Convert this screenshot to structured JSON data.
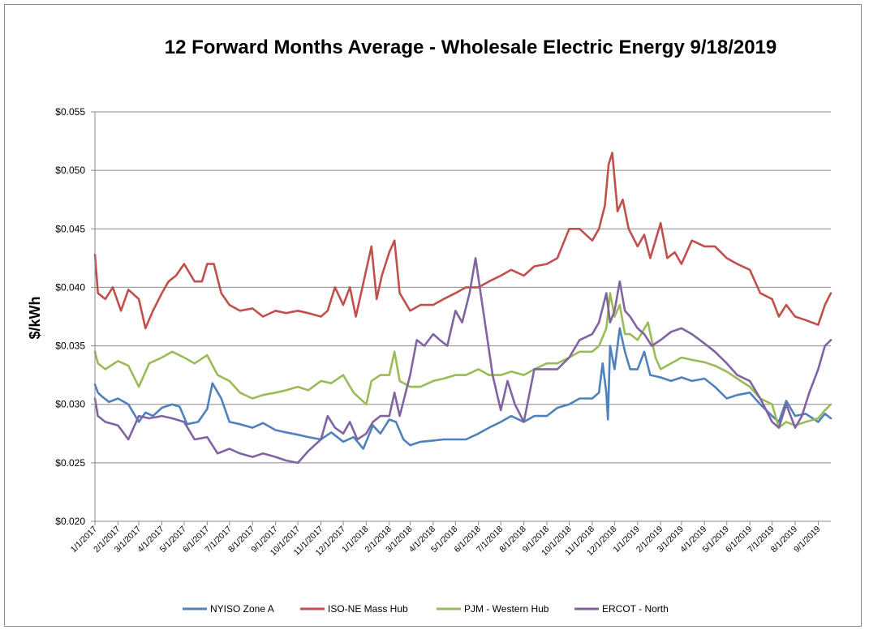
{
  "chart_data": {
    "type": "line",
    "title": "12 Forward Months Average - Wholesale Electric Energy 9/18/2019",
    "xlabel": "",
    "ylabel": "$/kWh",
    "ylim": [
      0.02,
      0.055
    ],
    "y_ticks": [
      "$0.020",
      "$0.025",
      "$0.030",
      "$0.035",
      "$0.040",
      "$0.045",
      "$0.050",
      "$0.055"
    ],
    "y_tick_values": [
      0.02,
      0.025,
      0.03,
      0.035,
      0.04,
      0.045,
      0.05,
      0.055
    ],
    "x_range": [
      "2017-01-01",
      "2019-09-18"
    ],
    "x_ticks": [
      "1/1/2017",
      "2/1/2017",
      "3/1/2017",
      "4/1/2017",
      "5/1/2017",
      "6/1/2017",
      "7/1/2017",
      "8/1/2017",
      "9/1/2017",
      "10/1/2017",
      "11/1/2017",
      "12/1/2017",
      "1/1/2018",
      "2/1/2018",
      "3/1/2018",
      "4/1/2018",
      "5/1/2018",
      "6/1/2018",
      "7/1/2018",
      "8/1/2018",
      "9/1/2018",
      "10/1/2018",
      "11/1/2018",
      "12/1/2018",
      "1/1/2019",
      "2/1/2019",
      "3/1/2019",
      "4/1/2019",
      "5/1/2019",
      "6/1/2019",
      "7/1/2019",
      "8/1/2019",
      "9/1/2019"
    ],
    "grid": true,
    "legend_position": "bottom",
    "series": [
      {
        "name": "NYISO Zone A",
        "color": "#4f81bd",
        "x": [
          "2017-01-01",
          "2017-01-05",
          "2017-01-10",
          "2017-01-20",
          "2017-02-01",
          "2017-02-15",
          "2017-03-01",
          "2017-03-10",
          "2017-03-20",
          "2017-04-01",
          "2017-04-15",
          "2017-04-25",
          "2017-05-05",
          "2017-05-20",
          "2017-06-01",
          "2017-06-08",
          "2017-06-20",
          "2017-07-01",
          "2017-07-15",
          "2017-08-01",
          "2017-08-15",
          "2017-09-01",
          "2017-09-15",
          "2017-10-01",
          "2017-10-15",
          "2017-11-01",
          "2017-11-15",
          "2017-12-01",
          "2017-12-15",
          "2017-12-28",
          "2018-01-10",
          "2018-01-20",
          "2018-02-01",
          "2018-02-10",
          "2018-02-20",
          "2018-03-01",
          "2018-03-15",
          "2018-04-01",
          "2018-04-15",
          "2018-05-01",
          "2018-05-15",
          "2018-06-01",
          "2018-06-15",
          "2018-07-01",
          "2018-07-15",
          "2018-08-01",
          "2018-08-15",
          "2018-09-01",
          "2018-09-15",
          "2018-10-01",
          "2018-10-15",
          "2018-11-01",
          "2018-11-10",
          "2018-11-15",
          "2018-11-20",
          "2018-11-22",
          "2018-11-25",
          "2018-12-01",
          "2018-12-08",
          "2018-12-15",
          "2018-12-22",
          "2019-01-01",
          "2019-01-10",
          "2019-01-18",
          "2019-02-01",
          "2019-02-15",
          "2019-03-01",
          "2019-03-15",
          "2019-04-01",
          "2019-04-15",
          "2019-05-01",
          "2019-05-15",
          "2019-06-01",
          "2019-06-15",
          "2019-07-01",
          "2019-07-10",
          "2019-07-20",
          "2019-08-01",
          "2019-08-15",
          "2019-09-01",
          "2019-09-10",
          "2019-09-18"
        ],
        "values": [
          0.0317,
          0.031,
          0.0307,
          0.0302,
          0.0305,
          0.03,
          0.0285,
          0.0293,
          0.029,
          0.0297,
          0.03,
          0.0298,
          0.0283,
          0.0285,
          0.0296,
          0.0318,
          0.0305,
          0.0285,
          0.0283,
          0.028,
          0.0284,
          0.0278,
          0.0276,
          0.0274,
          0.0272,
          0.027,
          0.0276,
          0.0268,
          0.0272,
          0.0262,
          0.0282,
          0.0275,
          0.0287,
          0.0285,
          0.027,
          0.0265,
          0.0268,
          0.0269,
          0.027,
          0.027,
          0.027,
          0.0275,
          0.028,
          0.0285,
          0.029,
          0.0285,
          0.029,
          0.029,
          0.0297,
          0.03,
          0.0305,
          0.0305,
          0.031,
          0.0335,
          0.031,
          0.0287,
          0.035,
          0.033,
          0.0365,
          0.0345,
          0.033,
          0.033,
          0.0345,
          0.0325,
          0.0323,
          0.032,
          0.0323,
          0.032,
          0.0322,
          0.0315,
          0.0305,
          0.0308,
          0.031,
          0.03,
          0.029,
          0.0285,
          0.0303,
          0.029,
          0.0292,
          0.0285,
          0.0292,
          0.0288
        ]
      },
      {
        "name": "ISO-NE Mass Hub",
        "color": "#c0504d",
        "x": [
          "2017-01-01",
          "2017-01-05",
          "2017-01-15",
          "2017-01-25",
          "2017-02-05",
          "2017-02-15",
          "2017-03-01",
          "2017-03-10",
          "2017-03-20",
          "2017-04-01",
          "2017-04-10",
          "2017-04-20",
          "2017-05-01",
          "2017-05-15",
          "2017-05-25",
          "2017-06-01",
          "2017-06-10",
          "2017-06-20",
          "2017-07-01",
          "2017-07-15",
          "2017-08-01",
          "2017-08-15",
          "2017-09-01",
          "2017-09-15",
          "2017-10-01",
          "2017-10-15",
          "2017-11-01",
          "2017-11-10",
          "2017-11-20",
          "2017-12-01",
          "2017-12-10",
          "2017-12-18",
          "2018-01-01",
          "2018-01-08",
          "2018-01-15",
          "2018-01-22",
          "2018-02-01",
          "2018-02-08",
          "2018-02-15",
          "2018-03-01",
          "2018-03-15",
          "2018-04-01",
          "2018-04-15",
          "2018-05-01",
          "2018-05-15",
          "2018-06-01",
          "2018-06-15",
          "2018-07-01",
          "2018-07-15",
          "2018-08-01",
          "2018-08-15",
          "2018-09-01",
          "2018-09-15",
          "2018-10-01",
          "2018-10-15",
          "2018-11-01",
          "2018-11-10",
          "2018-11-18",
          "2018-11-23",
          "2018-11-28",
          "2018-12-05",
          "2018-12-12",
          "2018-12-20",
          "2019-01-01",
          "2019-01-10",
          "2019-01-18",
          "2019-02-01",
          "2019-02-10",
          "2019-02-20",
          "2019-03-01",
          "2019-03-15",
          "2019-04-01",
          "2019-04-15",
          "2019-05-01",
          "2019-05-15",
          "2019-06-01",
          "2019-06-15",
          "2019-07-01",
          "2019-07-10",
          "2019-07-20",
          "2019-08-01",
          "2019-08-15",
          "2019-09-01",
          "2019-09-10",
          "2019-09-18"
        ],
        "values": [
          0.0428,
          0.0395,
          0.039,
          0.04,
          0.038,
          0.0398,
          0.039,
          0.0365,
          0.038,
          0.0395,
          0.0405,
          0.041,
          0.042,
          0.0405,
          0.0405,
          0.042,
          0.042,
          0.0395,
          0.0385,
          0.038,
          0.0382,
          0.0375,
          0.038,
          0.0378,
          0.038,
          0.0378,
          0.0375,
          0.038,
          0.04,
          0.0385,
          0.04,
          0.0375,
          0.0415,
          0.0435,
          0.039,
          0.041,
          0.043,
          0.044,
          0.0395,
          0.038,
          0.0385,
          0.0385,
          0.039,
          0.0395,
          0.04,
          0.04,
          0.0405,
          0.041,
          0.0415,
          0.041,
          0.0418,
          0.042,
          0.0425,
          0.045,
          0.045,
          0.044,
          0.045,
          0.047,
          0.0505,
          0.0515,
          0.0465,
          0.0475,
          0.045,
          0.0435,
          0.0445,
          0.0425,
          0.0455,
          0.0425,
          0.043,
          0.042,
          0.044,
          0.0435,
          0.0435,
          0.0425,
          0.042,
          0.0415,
          0.0395,
          0.039,
          0.0375,
          0.0385,
          0.0375,
          0.0372,
          0.0368,
          0.0385,
          0.0395
        ]
      },
      {
        "name": "PJM - Western Hub",
        "color": "#9bbb59",
        "x": [
          "2017-01-01",
          "2017-01-05",
          "2017-01-15",
          "2017-02-01",
          "2017-02-15",
          "2017-03-01",
          "2017-03-15",
          "2017-04-01",
          "2017-04-15",
          "2017-05-01",
          "2017-05-15",
          "2017-06-01",
          "2017-06-15",
          "2017-07-01",
          "2017-07-15",
          "2017-08-01",
          "2017-08-15",
          "2017-09-01",
          "2017-09-15",
          "2017-10-01",
          "2017-10-15",
          "2017-11-01",
          "2017-11-15",
          "2017-12-01",
          "2017-12-15",
          "2018-01-01",
          "2018-01-08",
          "2018-01-20",
          "2018-02-01",
          "2018-02-08",
          "2018-02-15",
          "2018-03-01",
          "2018-03-15",
          "2018-04-01",
          "2018-04-15",
          "2018-05-01",
          "2018-05-15",
          "2018-06-01",
          "2018-06-15",
          "2018-07-01",
          "2018-07-15",
          "2018-08-01",
          "2018-08-15",
          "2018-09-01",
          "2018-09-15",
          "2018-10-01",
          "2018-10-15",
          "2018-11-01",
          "2018-11-10",
          "2018-11-20",
          "2018-11-25",
          "2018-12-01",
          "2018-12-08",
          "2018-12-15",
          "2018-12-22",
          "2019-01-01",
          "2019-01-15",
          "2019-01-25",
          "2019-02-01",
          "2019-02-15",
          "2019-03-01",
          "2019-03-15",
          "2019-04-01",
          "2019-04-15",
          "2019-05-01",
          "2019-05-15",
          "2019-06-01",
          "2019-06-15",
          "2019-07-01",
          "2019-07-10",
          "2019-07-20",
          "2019-08-01",
          "2019-08-15",
          "2019-09-01",
          "2019-09-10",
          "2019-09-18"
        ],
        "values": [
          0.0345,
          0.0335,
          0.033,
          0.0337,
          0.0333,
          0.0315,
          0.0335,
          0.034,
          0.0345,
          0.034,
          0.0335,
          0.0342,
          0.0325,
          0.032,
          0.031,
          0.0305,
          0.0308,
          0.031,
          0.0312,
          0.0315,
          0.0312,
          0.032,
          0.0318,
          0.0325,
          0.031,
          0.03,
          0.032,
          0.0325,
          0.0325,
          0.0345,
          0.032,
          0.0315,
          0.0315,
          0.032,
          0.0322,
          0.0325,
          0.0325,
          0.033,
          0.0325,
          0.0325,
          0.0328,
          0.0325,
          0.033,
          0.0335,
          0.0335,
          0.034,
          0.0345,
          0.0345,
          0.035,
          0.0365,
          0.0395,
          0.0375,
          0.0385,
          0.036,
          0.036,
          0.0355,
          0.037,
          0.034,
          0.033,
          0.0335,
          0.034,
          0.0338,
          0.0336,
          0.0333,
          0.0328,
          0.0322,
          0.0315,
          0.0305,
          0.03,
          0.028,
          0.0285,
          0.0282,
          0.0285,
          0.0288,
          0.0295,
          0.03
        ]
      },
      {
        "name": "ERCOT - North",
        "color": "#8064a2",
        "x": [
          "2017-01-01",
          "2017-01-05",
          "2017-01-15",
          "2017-02-01",
          "2017-02-15",
          "2017-03-01",
          "2017-03-15",
          "2017-04-01",
          "2017-04-15",
          "2017-05-01",
          "2017-05-15",
          "2017-06-01",
          "2017-06-15",
          "2017-07-01",
          "2017-07-15",
          "2017-08-01",
          "2017-08-15",
          "2017-09-01",
          "2017-09-15",
          "2017-10-01",
          "2017-10-15",
          "2017-11-01",
          "2017-11-10",
          "2017-11-20",
          "2017-12-01",
          "2017-12-10",
          "2017-12-20",
          "2018-01-01",
          "2018-01-10",
          "2018-01-20",
          "2018-02-01",
          "2018-02-08",
          "2018-02-15",
          "2018-03-01",
          "2018-03-10",
          "2018-03-20",
          "2018-04-01",
          "2018-04-10",
          "2018-04-20",
          "2018-05-01",
          "2018-05-10",
          "2018-05-20",
          "2018-05-28",
          "2018-06-05",
          "2018-06-12",
          "2018-06-20",
          "2018-07-01",
          "2018-07-10",
          "2018-07-20",
          "2018-08-01",
          "2018-08-15",
          "2018-09-01",
          "2018-09-15",
          "2018-10-01",
          "2018-10-15",
          "2018-11-01",
          "2018-11-10",
          "2018-11-20",
          "2018-11-25",
          "2018-12-01",
          "2018-12-08",
          "2018-12-15",
          "2018-12-22",
          "2019-01-01",
          "2019-01-10",
          "2019-01-20",
          "2019-02-01",
          "2019-02-15",
          "2019-03-01",
          "2019-03-15",
          "2019-04-01",
          "2019-04-15",
          "2019-05-01",
          "2019-05-15",
          "2019-06-01",
          "2019-06-15",
          "2019-07-01",
          "2019-07-10",
          "2019-07-20",
          "2019-08-01",
          "2019-08-10",
          "2019-08-20",
          "2019-09-01",
          "2019-09-10",
          "2019-09-18"
        ],
        "values": [
          0.0305,
          0.029,
          0.0285,
          0.0282,
          0.027,
          0.029,
          0.0288,
          0.029,
          0.0288,
          0.0285,
          0.027,
          0.0272,
          0.0258,
          0.0262,
          0.0258,
          0.0255,
          0.0258,
          0.0255,
          0.0252,
          0.025,
          0.026,
          0.027,
          0.029,
          0.028,
          0.0275,
          0.0285,
          0.027,
          0.0275,
          0.0285,
          0.029,
          0.029,
          0.031,
          0.029,
          0.0325,
          0.0355,
          0.035,
          0.036,
          0.0355,
          0.035,
          0.038,
          0.037,
          0.0395,
          0.0425,
          0.039,
          0.036,
          0.0325,
          0.0295,
          0.032,
          0.03,
          0.0285,
          0.033,
          0.033,
          0.033,
          0.034,
          0.0355,
          0.036,
          0.037,
          0.0395,
          0.037,
          0.038,
          0.0405,
          0.038,
          0.0375,
          0.0365,
          0.036,
          0.035,
          0.0355,
          0.0362,
          0.0365,
          0.036,
          0.0352,
          0.0345,
          0.0335,
          0.0325,
          0.032,
          0.0305,
          0.0285,
          0.028,
          0.03,
          0.028,
          0.029,
          0.031,
          0.033,
          0.035,
          0.0355
        ]
      }
    ]
  }
}
